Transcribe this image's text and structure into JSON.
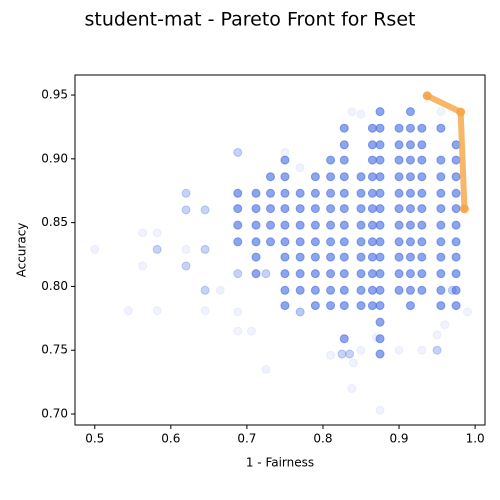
{
  "chart_data": {
    "type": "scatter",
    "title": "student-mat - Pareto Front for Rset",
    "xlabel": "1 - Fairness",
    "ylabel": "Accuracy",
    "xlim": [
      0.474,
      1.013
    ],
    "ylim": [
      0.6914,
      0.9657
    ],
    "xticks": [
      0.5,
      0.6,
      0.7,
      0.8,
      0.9,
      {
        "value": 1,
        "label": "1.0"
      }
    ],
    "yticks": [
      {
        "value": 0.7,
        "label": "0.70"
      },
      0.75,
      {
        "value": 0.8,
        "label": "0.80"
      },
      0.85,
      {
        "value": 0.9,
        "label": "0.90"
      },
      0.95
    ],
    "series": [
      {
        "color": "#4169e1",
        "opacity": 0.08,
        "x": [
          0.5,
          0.544,
          0.563,
          0.563,
          0.582,
          0.582,
          0.62,
          0.645,
          0.665,
          0.688,
          0.688,
          0.706,
          0.725,
          0.75,
          0.77,
          0.838,
          0.838,
          0.85,
          0.81,
          0.84,
          0.875,
          0.9,
          0.93,
          0.95,
          0.955,
          0.99,
          0.96,
          0.85,
          0.87,
          0.77
        ],
        "values": [
          0.829,
          0.781,
          0.842,
          0.816,
          0.781,
          0.842,
          0.829,
          0.781,
          0.797,
          0.78,
          0.765,
          0.765,
          0.735,
          0.905,
          0.893,
          0.937,
          0.72,
          0.935,
          0.746,
          0.74,
          0.703,
          0.75,
          0.75,
          0.762,
          0.937,
          0.78,
          0.77,
          0.75,
          0.76,
          0.78
        ]
      },
      {
        "color": "#4169e1",
        "opacity": 0.3,
        "x": [
          0.62,
          0.62,
          0.645,
          0.645,
          0.582,
          0.62,
          0.645,
          0.688,
          0.825,
          0.835,
          0.97,
          0.688,
          0.725,
          0.77,
          0.95
        ],
        "values": [
          0.873,
          0.86,
          0.86,
          0.829,
          0.829,
          0.816,
          0.797,
          0.905,
          0.747,
          0.747,
          0.797,
          0.81,
          0.81,
          0.78,
          0.75
        ]
      },
      {
        "color": "#4169e1",
        "opacity": 0.6,
        "x": [
          0.688,
          0.688,
          0.688,
          0.688
        ],
        "values": [
          0.873,
          0.861,
          0.848,
          0.835
        ]
      },
      {
        "color": "#4169e1",
        "opacity": 0.6,
        "x": [
          0.712,
          0.712,
          0.712,
          0.712,
          0.712,
          0.712
        ],
        "values": [
          0.873,
          0.861,
          0.848,
          0.835,
          0.823,
          0.81
        ]
      },
      {
        "color": "#4169e1",
        "opacity": 0.6,
        "x": [
          0.731,
          0.731,
          0.731,
          0.731,
          0.731
        ],
        "values": [
          0.886,
          0.873,
          0.861,
          0.848,
          0.835
        ]
      },
      {
        "color": "#4169e1",
        "opacity": 0.6,
        "x": [
          0.75,
          0.75,
          0.75,
          0.75,
          0.75,
          0.75,
          0.75,
          0.75,
          0.75,
          0.75
        ],
        "values": [
          0.899,
          0.886,
          0.873,
          0.861,
          0.848,
          0.835,
          0.823,
          0.81,
          0.797,
          0.785
        ]
      },
      {
        "color": "#4169e1",
        "opacity": 0.6,
        "x": [
          0.77,
          0.77,
          0.77,
          0.77,
          0.77,
          0.77,
          0.77
        ],
        "values": [
          0.873,
          0.861,
          0.848,
          0.835,
          0.823,
          0.81,
          0.797
        ]
      },
      {
        "color": "#4169e1",
        "opacity": 0.6,
        "x": [
          0.79,
          0.79,
          0.79,
          0.79,
          0.79,
          0.79,
          0.79,
          0.79,
          0.79
        ],
        "values": [
          0.886,
          0.873,
          0.861,
          0.848,
          0.835,
          0.823,
          0.81,
          0.797,
          0.785
        ]
      },
      {
        "color": "#4169e1",
        "opacity": 0.6,
        "x": [
          0.81,
          0.81,
          0.81,
          0.81,
          0.81,
          0.81,
          0.81,
          0.81,
          0.81,
          0.81
        ],
        "values": [
          0.899,
          0.886,
          0.873,
          0.861,
          0.848,
          0.835,
          0.823,
          0.81,
          0.797,
          0.785
        ]
      },
      {
        "color": "#4169e1",
        "opacity": 0.6,
        "x": [
          0.828,
          0.828,
          0.828,
          0.828,
          0.828,
          0.828,
          0.828,
          0.828,
          0.828,
          0.828,
          0.828,
          0.828,
          0.828
        ],
        "values": [
          0.924,
          0.911,
          0.899,
          0.886,
          0.873,
          0.861,
          0.848,
          0.835,
          0.823,
          0.81,
          0.797,
          0.785,
          0.759
        ]
      },
      {
        "color": "#4169e1",
        "opacity": 0.6,
        "x": [
          0.85,
          0.85,
          0.85,
          0.85,
          0.85,
          0.85,
          0.85,
          0.85,
          0.85
        ],
        "values": [
          0.886,
          0.873,
          0.861,
          0.848,
          0.835,
          0.823,
          0.81,
          0.797,
          0.785
        ]
      },
      {
        "color": "#4169e1",
        "opacity": 0.6,
        "x": [
          0.865,
          0.865,
          0.865,
          0.865,
          0.865,
          0.865,
          0.865,
          0.865,
          0.865,
          0.865,
          0.865,
          0.865
        ],
        "values": [
          0.924,
          0.911,
          0.899,
          0.886,
          0.873,
          0.861,
          0.848,
          0.835,
          0.823,
          0.81,
          0.797,
          0.785
        ]
      },
      {
        "color": "#4169e1",
        "opacity": 0.6,
        "x": [
          0.875,
          0.875,
          0.875,
          0.875,
          0.875,
          0.875,
          0.875,
          0.875,
          0.875,
          0.875,
          0.875,
          0.875,
          0.875,
          0.875,
          0.875,
          0.875
        ],
        "values": [
          0.937,
          0.924,
          0.911,
          0.899,
          0.886,
          0.873,
          0.861,
          0.848,
          0.835,
          0.823,
          0.81,
          0.797,
          0.785,
          0.772,
          0.759,
          0.747
        ]
      },
      {
        "color": "#4169e1",
        "opacity": 0.6,
        "x": [
          0.9,
          0.9,
          0.9,
          0.9,
          0.9,
          0.9,
          0.9,
          0.9,
          0.9,
          0.9,
          0.9
        ],
        "values": [
          0.924,
          0.911,
          0.899,
          0.886,
          0.873,
          0.861,
          0.848,
          0.835,
          0.823,
          0.81,
          0.797
        ]
      },
      {
        "color": "#4169e1",
        "opacity": 0.6,
        "x": [
          0.915,
          0.915,
          0.915,
          0.915,
          0.915,
          0.915,
          0.915,
          0.915,
          0.915,
          0.915,
          0.915,
          0.915,
          0.915
        ],
        "values": [
          0.937,
          0.924,
          0.911,
          0.899,
          0.886,
          0.873,
          0.861,
          0.848,
          0.835,
          0.823,
          0.81,
          0.797,
          0.785
        ]
      },
      {
        "color": "#4169e1",
        "opacity": 0.6,
        "x": [
          0.93,
          0.93,
          0.93,
          0.93,
          0.93,
          0.93,
          0.93,
          0.93,
          0.93,
          0.93,
          0.93
        ],
        "values": [
          0.924,
          0.911,
          0.899,
          0.886,
          0.873,
          0.861,
          0.848,
          0.835,
          0.823,
          0.81,
          0.797
        ]
      },
      {
        "color": "#4169e1",
        "opacity": 0.6,
        "x": [
          0.955,
          0.955,
          0.955,
          0.955,
          0.955,
          0.955,
          0.955,
          0.955,
          0.955,
          0.955,
          0.955
        ],
        "values": [
          0.924,
          0.899,
          0.886,
          0.873,
          0.861,
          0.848,
          0.835,
          0.823,
          0.81,
          0.797,
          0.785
        ]
      },
      {
        "color": "#4169e1",
        "opacity": 0.6,
        "x": [
          0.975,
          0.975,
          0.975,
          0.975,
          0.975,
          0.975,
          0.975,
          0.975,
          0.975,
          0.975,
          0.975
        ],
        "values": [
          0.911,
          0.899,
          0.886,
          0.873,
          0.861,
          0.848,
          0.835,
          0.823,
          0.81,
          0.797,
          0.785
        ]
      },
      {
        "color": "#f5a442",
        "opacity": 0.8,
        "line": true,
        "x": [
          0.937,
          0.981,
          0.986
        ],
        "values": [
          0.9494,
          0.9367,
          0.8608
        ]
      }
    ]
  }
}
